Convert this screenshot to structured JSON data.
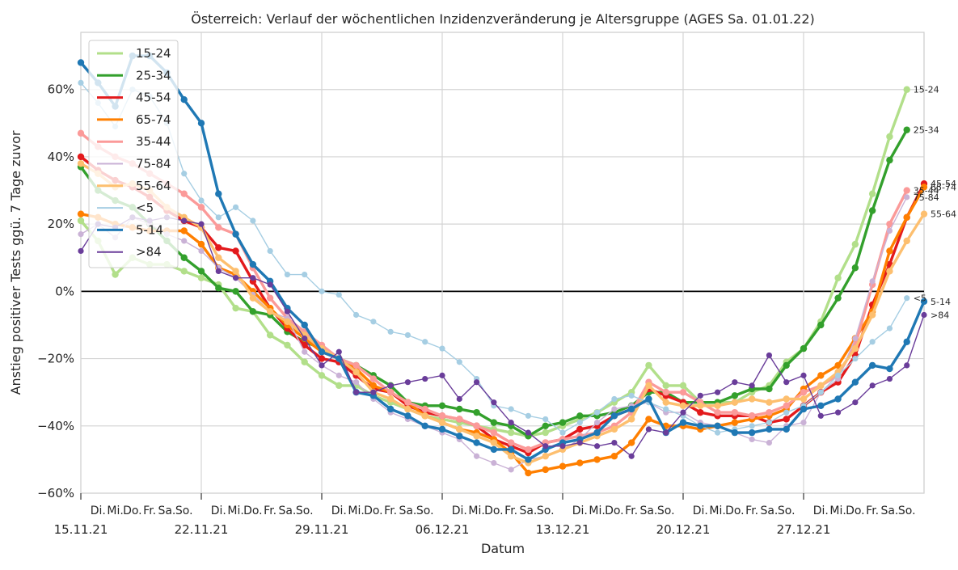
{
  "chart_data": {
    "type": "line",
    "title": "Österreich: Verlauf der wöchentlichen Inzidenzveränderung je Altersgruppe (AGES Sa. 01.01.22)",
    "xlabel": "Datum",
    "ylabel": "Anstieg positiver Tests ggü. 7 Tage zuvor",
    "x_start": "15.11.21",
    "x_end": "31.12.21",
    "x_unit": "day",
    "ylim": [
      -60,
      77
    ],
    "y_ticks": [
      -60,
      -40,
      -20,
      0,
      20,
      40,
      60
    ],
    "y_tick_labels": [
      "−60%",
      "−40%",
      "−20%",
      "0%",
      "20%",
      "40%",
      "60%"
    ],
    "x_major_ticks": [
      "15.11.21",
      "22.11.21",
      "29.11.21",
      "06.12.21",
      "13.12.21",
      "20.12.21",
      "27.12.21"
    ],
    "x_minor_labels": [
      "Di.",
      "Mi.",
      "Do.",
      "Fr.",
      "Sa.",
      "So."
    ],
    "grid": true,
    "zero_line": true,
    "legend_position": "top-left",
    "series": [
      {
        "name": "15-24",
        "color": "#b2df8a",
        "width": "thick",
        "end_label": "15-24",
        "values": [
          21,
          15,
          5,
          10,
          8,
          8,
          6,
          4,
          2,
          -5,
          -6,
          -13,
          -16,
          -21,
          -25,
          -28,
          -28,
          -31,
          -33,
          -35,
          -37,
          -38,
          -39,
          -40,
          -41,
          -42,
          -43,
          -42,
          -40,
          -38,
          -36,
          -33,
          -30,
          -22,
          -28,
          -28,
          -33,
          -33,
          -33,
          -30,
          -28,
          -21,
          -17,
          -9,
          4,
          14,
          29,
          46,
          60
        ]
      },
      {
        "name": "25-34",
        "color": "#33a02c",
        "width": "thick",
        "end_label": "25-34",
        "values": [
          37,
          30,
          27,
          25,
          20,
          15,
          10,
          6,
          1,
          0,
          -6,
          -7,
          -12,
          -15,
          -17,
          -20,
          -22,
          -25,
          -28,
          -33,
          -34,
          -34,
          -35,
          -36,
          -39,
          -40,
          -43,
          -40,
          -39,
          -37,
          -37,
          -36,
          -34,
          -30,
          -30,
          -33,
          -33,
          -33,
          -31,
          -29,
          -29,
          -22,
          -17,
          -10,
          -2,
          7,
          24,
          39,
          48
        ]
      },
      {
        "name": "45-54",
        "color": "#e31a1c",
        "width": "thick",
        "end_label": "45-54",
        "values": [
          40,
          36,
          33,
          31,
          28,
          24,
          21,
          19,
          13,
          12,
          3,
          -5,
          -11,
          -16,
          -20,
          -21,
          -25,
          -29,
          -30,
          -34,
          -36,
          -37,
          -38,
          -40,
          -44,
          -46,
          -48,
          -45,
          -44,
          -41,
          -40,
          -37,
          -35,
          -29,
          -31,
          -33,
          -36,
          -37,
          -37,
          -37,
          -39,
          -38,
          -34,
          -30,
          -27,
          -19,
          -4,
          8,
          22,
          32
        ]
      },
      {
        "name": "65-74",
        "color": "#ff7f00",
        "width": "thick",
        "end_label": "65-74",
        "values": [
          23,
          22,
          20,
          19,
          18,
          18,
          18,
          14,
          7,
          5,
          0,
          -5,
          -10,
          -14,
          -18,
          -20,
          -23,
          -28,
          -30,
          -33,
          -37,
          -39,
          -41,
          -42,
          -44,
          -48,
          -54,
          -53,
          -52,
          -51,
          -50,
          -49,
          -45,
          -38,
          -40,
          -40,
          -41,
          -40,
          -39,
          -38,
          -37,
          -35,
          -29,
          -25,
          -22,
          -14,
          -6,
          12,
          22,
          31
        ]
      },
      {
        "name": "35-44",
        "color": "#fb9a99",
        "width": "thick",
        "end_label": "35-44",
        "values": [
          47,
          43,
          40,
          38,
          35,
          32,
          29,
          25,
          19,
          17,
          7,
          -2,
          -8,
          -12,
          -16,
          -20,
          -22,
          -26,
          -30,
          -33,
          -35,
          -37,
          -38,
          -40,
          -42,
          -45,
          -47,
          -45,
          -44,
          -43,
          -42,
          -40,
          -36,
          -27,
          -30,
          -30,
          -33,
          -36,
          -36,
          -37,
          -36,
          -34,
          -30,
          -28,
          -25,
          -16,
          2,
          20,
          30
        ]
      },
      {
        "name": "75-84",
        "color": "#cab2d6",
        "width": "thin",
        "end_label": "75-84",
        "values": [
          17,
          20,
          16,
          22,
          20,
          17,
          15,
          12,
          7,
          4,
          -1,
          -6,
          -8,
          -18,
          -22,
          -25,
          -27,
          -32,
          -36,
          -38,
          -40,
          -42,
          -44,
          -49,
          -51,
          -53,
          -50,
          -49,
          -47,
          -44,
          -39,
          -35,
          -34,
          -33,
          -36,
          -36,
          -39,
          -40,
          -42,
          -44,
          -45,
          -40,
          -39,
          -30,
          -26,
          -14,
          3,
          18,
          28
        ]
      },
      {
        "name": "55-64",
        "color": "#fdbf6f",
        "width": "thick",
        "end_label": "55-64",
        "values": [
          38,
          35,
          31,
          32,
          30,
          25,
          22,
          19,
          10,
          6,
          -2,
          -6,
          -9,
          -13,
          -17,
          -20,
          -24,
          -30,
          -32,
          -35,
          -37,
          -39,
          -41,
          -43,
          -45,
          -49,
          -51,
          -49,
          -47,
          -45,
          -43,
          -41,
          -38,
          -28,
          -33,
          -34,
          -34,
          -34,
          -33,
          -32,
          -33,
          -32,
          -32,
          -28,
          -24,
          -17,
          -7,
          6,
          15,
          23
        ]
      },
      {
        "name": "<5",
        "color": "#a6cee3",
        "width": "thin",
        "end_label": "<5",
        "values": [
          62,
          56,
          49,
          60,
          58,
          50,
          35,
          27,
          22,
          25,
          21,
          12,
          5,
          5,
          0,
          -1,
          -7,
          -9,
          -12,
          -13,
          -15,
          -17,
          -21,
          -26,
          -34,
          -35,
          -37,
          -38,
          -42,
          -39,
          -36,
          -32,
          -31,
          -33,
          -35,
          -37,
          -40,
          -42,
          -41,
          -40,
          -39,
          -36,
          -34,
          -30,
          -25,
          -20,
          -15,
          -11,
          -2
        ]
      },
      {
        "name": "5-14",
        "color": "#1f78b4",
        "width": "thick",
        "end_label": "5-14",
        "values": [
          68,
          62,
          55,
          70,
          70,
          65,
          57,
          50,
          29,
          17,
          8,
          3,
          -5,
          -10,
          -18,
          -20,
          -30,
          -31,
          -35,
          -37,
          -40,
          -41,
          -43,
          -45,
          -47,
          -47,
          -50,
          -47,
          -45,
          -44,
          -42,
          -37,
          -35,
          -32,
          -42,
          -39,
          -40,
          -40,
          -42,
          -42,
          -41,
          -41,
          -35,
          -34,
          -32,
          -27,
          -22,
          -23,
          -15,
          -3
        ]
      },
      {
        "name": ">84",
        "color": "#6a3d9a",
        "width": "thin",
        "end_label": ">84",
        "values": [
          12,
          20,
          19,
          22,
          21,
          22,
          21,
          20,
          6,
          4,
          4,
          2,
          -6,
          -14,
          -22,
          -18,
          -30,
          -30,
          -28,
          -27,
          -26,
          -25,
          -32,
          -27,
          -33,
          -39,
          -42,
          -46,
          -46,
          -45,
          -46,
          -45,
          -49,
          -41,
          -42,
          -36,
          -31,
          -30,
          -27,
          -28,
          -19,
          -27,
          -25,
          -37,
          -36,
          -33,
          -28,
          -26,
          -22,
          -7
        ]
      }
    ]
  }
}
